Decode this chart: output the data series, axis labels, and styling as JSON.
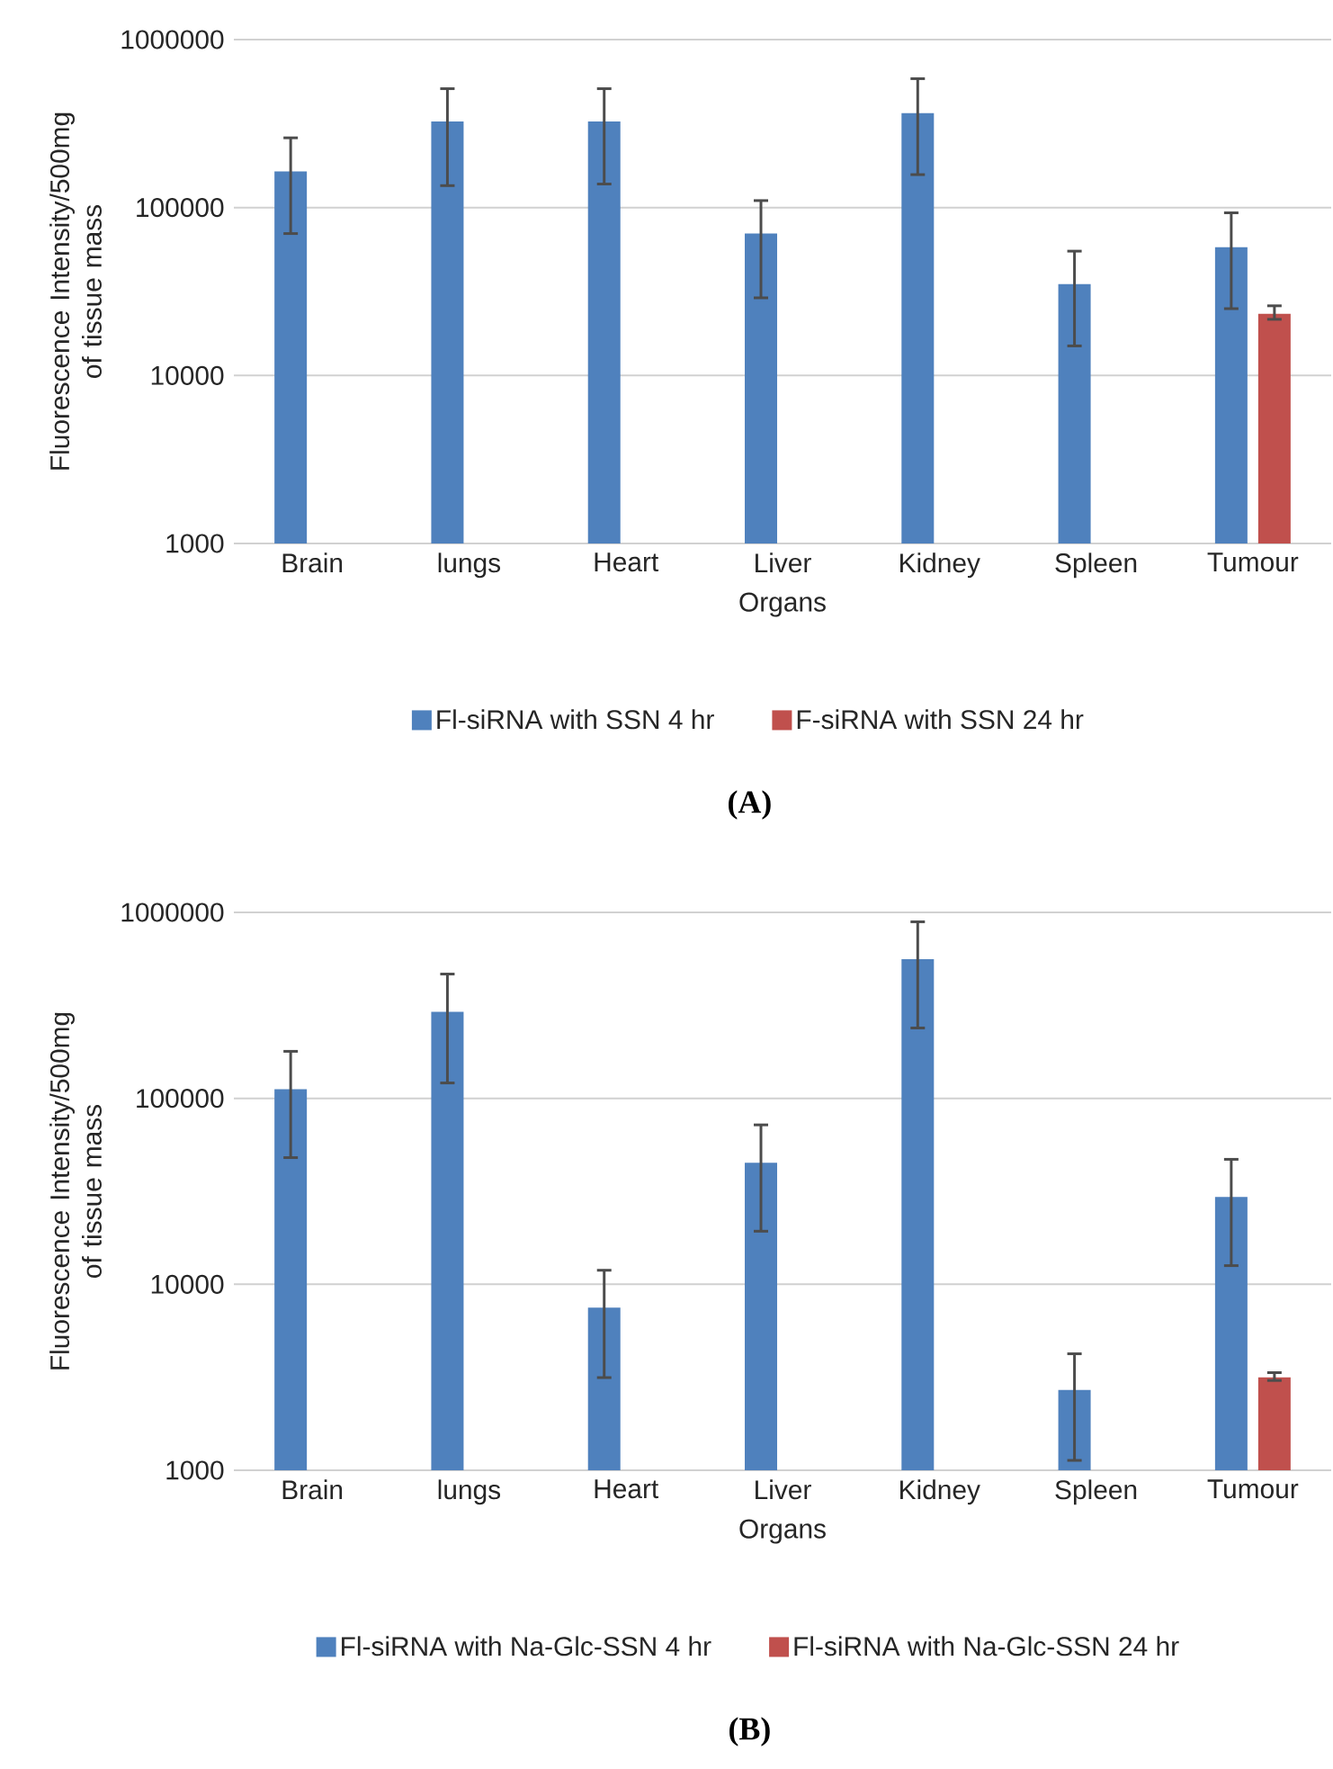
{
  "chart_data": [
    {
      "type": "bar",
      "xlabel": "Organs",
      "ylabel": "Fluorescence Intensity/500mg of tissue mass",
      "categories": [
        "Brain",
        "lungs",
        "Heart",
        "Liver",
        "Kidney",
        "Spleen",
        "Tumour"
      ],
      "series": [
        {
          "name": "Fl-siRNA with SSN 4 hr",
          "color": "#4f81bd",
          "values": [
            164000,
            325000,
            325000,
            70000,
            365000,
            35000,
            58000
          ],
          "errors": [
            [
              70000,
              260000
            ],
            [
              135000,
              510000
            ],
            [
              138000,
              510000
            ],
            [
              29000,
              110000
            ],
            [
              157000,
              585000
            ],
            [
              15000,
              55000
            ],
            [
              25000,
              93000
            ]
          ]
        },
        {
          "name": "F-siRNA with SSN 24 hr",
          "color": "#c0504d",
          "values": [
            null,
            null,
            null,
            null,
            null,
            null,
            23300
          ],
          "errors": [
            null,
            null,
            null,
            null,
            null,
            null,
            [
              21600,
              26000
            ]
          ]
        }
      ],
      "ylim": [
        1000,
        1000000
      ],
      "yticks": [
        1000,
        10000,
        100000,
        1000000
      ],
      "log": true,
      "grid": "y",
      "legend": "bottom",
      "annotations": [
        "(A)"
      ]
    },
    {
      "type": "bar",
      "xlabel": "Organs",
      "ylabel": "Fluorescence Intensity/500mg of tissue mass",
      "categories": [
        "Brain",
        "lungs",
        "Heart",
        "Liver",
        "Kidney",
        "Spleen",
        "Tumour"
      ],
      "series": [
        {
          "name": "Fl-siRNA with Na-Glc-SSN 4 hr",
          "color": "#4f81bd",
          "values": [
            112000,
            292000,
            7500,
            45000,
            560000,
            2700,
            29500
          ],
          "errors": [
            [
              48000,
              179000
            ],
            [
              121000,
              466000
            ],
            [
              3150,
              11900
            ],
            [
              19300,
              72000
            ],
            [
              239000,
              890000
            ],
            [
              1130,
              4230
            ],
            [
              12600,
              47000
            ]
          ]
        },
        {
          "name": "Fl-siRNA with Na-Glc-SSN 24 hr",
          "color": "#c0504d",
          "values": [
            null,
            null,
            null,
            null,
            null,
            null,
            3160
          ],
          "errors": [
            null,
            null,
            null,
            null,
            null,
            null,
            [
              3040,
              3350
            ]
          ]
        }
      ],
      "ylim": [
        1000,
        1000000
      ],
      "yticks": [
        1000,
        10000,
        100000,
        1000000
      ],
      "log": true,
      "grid": "y",
      "legend": "bottom",
      "annotations": [
        "(B)"
      ]
    }
  ]
}
